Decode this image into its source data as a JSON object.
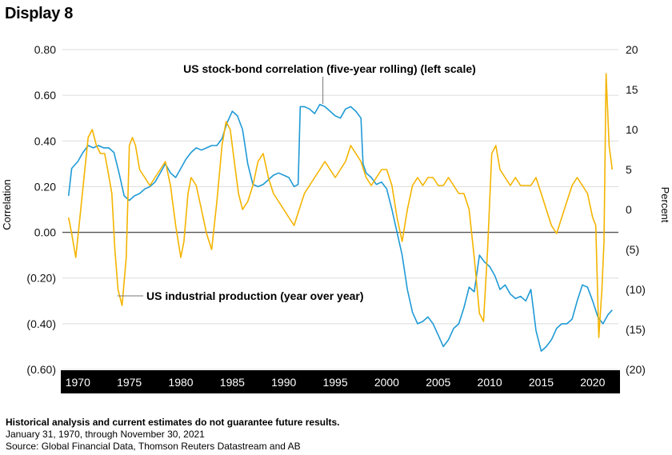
{
  "page": {
    "title": "Display 8",
    "notes": [
      "Historical analysis and current estimates do not guarantee future results.",
      "January 31, 1970, through November 30, 2021",
      "Source: Global Financial Data, Thomson Reuters Datastream and AB"
    ]
  },
  "chart_data": {
    "type": "line",
    "title": "",
    "xlabel": "",
    "ylabel_left": "Correlation",
    "ylabel_right": "Percent",
    "xlim": [
      1968.5,
      2022.5
    ],
    "ylim_left": [
      -0.6,
      0.8
    ],
    "ylim_right": [
      -20,
      20
    ],
    "x_ticks": [
      1970,
      1975,
      1980,
      1985,
      1990,
      1995,
      2000,
      2005,
      2010,
      2015,
      2020
    ],
    "x_tick_labels": [
      "1970",
      "1975",
      "1980",
      "1985",
      "1990",
      "1995",
      "2000",
      "2005",
      "2010",
      "2015",
      "2020"
    ],
    "y_left_ticks": [
      0.8,
      0.6,
      0.4,
      0.2,
      0.0,
      -0.2,
      -0.4,
      -0.6
    ],
    "y_left_tick_labels": [
      "0.80",
      "0.60",
      "0.40",
      "0.20",
      "0.00",
      "(0.20)",
      "(0.40)",
      "(0.60)"
    ],
    "y_right_ticks": [
      20,
      15,
      10,
      5,
      0,
      -5,
      -10,
      -15,
      -20
    ],
    "y_right_tick_labels": [
      "20",
      "15",
      "10",
      "5",
      "0",
      "(5)",
      "(10)",
      "(15)",
      "(20)"
    ],
    "grid": true,
    "zero_line": true,
    "series": [
      {
        "name": "US stock-bond correlation (five-year rolling) (left scale)",
        "axis": "left",
        "color": "#1f9ad6",
        "x": [
          1969.1,
          1969.4,
          1970.0,
          1970.5,
          1971.0,
          1971.5,
          1972.0,
          1972.5,
          1973.0,
          1973.5,
          1974.0,
          1974.5,
          1975.0,
          1975.5,
          1976.0,
          1976.5,
          1977.0,
          1977.5,
          1978.0,
          1978.5,
          1979.0,
          1979.5,
          1980.0,
          1980.5,
          1981.0,
          1981.5,
          1982.0,
          1982.5,
          1983.0,
          1983.5,
          1984.0,
          1984.5,
          1985.0,
          1985.5,
          1986.0,
          1986.5,
          1987.0,
          1987.5,
          1988.0,
          1988.5,
          1989.0,
          1989.5,
          1990.0,
          1990.5,
          1991.0,
          1991.4,
          1991.6,
          1992.0,
          1992.5,
          1993.0,
          1993.5,
          1994.0,
          1994.5,
          1995.0,
          1995.5,
          1996.0,
          1996.5,
          1997.0,
          1997.5,
          1997.7,
          1998.0,
          1998.5,
          1999.0,
          1999.5,
          2000.0,
          2000.5,
          2001.0,
          2001.5,
          2002.0,
          2002.5,
          2003.0,
          2003.5,
          2004.0,
          2004.5,
          2005.0,
          2005.5,
          2006.0,
          2006.5,
          2007.0,
          2007.5,
          2008.0,
          2008.5,
          2009.0,
          2009.5,
          2010.0,
          2010.5,
          2011.0,
          2011.5,
          2012.0,
          2012.5,
          2013.0,
          2013.5,
          2014.0,
          2014.5,
          2015.0,
          2015.5,
          2016.0,
          2016.5,
          2017.0,
          2017.5,
          2018.0,
          2018.5,
          2019.0,
          2019.5,
          2020.0,
          2020.5,
          2021.0,
          2021.5,
          2021.9
        ],
        "values": [
          0.16,
          0.28,
          0.31,
          0.35,
          0.38,
          0.37,
          0.38,
          0.37,
          0.37,
          0.35,
          0.26,
          0.16,
          0.14,
          0.16,
          0.17,
          0.19,
          0.2,
          0.22,
          0.26,
          0.3,
          0.26,
          0.24,
          0.28,
          0.32,
          0.35,
          0.37,
          0.36,
          0.37,
          0.38,
          0.38,
          0.41,
          0.48,
          0.53,
          0.51,
          0.45,
          0.3,
          0.21,
          0.2,
          0.21,
          0.23,
          0.25,
          0.26,
          0.25,
          0.24,
          0.2,
          0.21,
          0.55,
          0.55,
          0.54,
          0.52,
          0.56,
          0.55,
          0.53,
          0.51,
          0.5,
          0.54,
          0.55,
          0.53,
          0.5,
          0.3,
          0.26,
          0.24,
          0.21,
          0.22,
          0.19,
          0.1,
          0.0,
          -0.1,
          -0.25,
          -0.35,
          -0.4,
          -0.39,
          -0.37,
          -0.4,
          -0.45,
          -0.5,
          -0.47,
          -0.42,
          -0.4,
          -0.33,
          -0.24,
          -0.26,
          -0.1,
          -0.13,
          -0.15,
          -0.19,
          -0.25,
          -0.23,
          -0.27,
          -0.29,
          -0.28,
          -0.3,
          -0.25,
          -0.43,
          -0.52,
          -0.5,
          -0.47,
          -0.42,
          -0.4,
          -0.4,
          -0.38,
          -0.3,
          -0.23,
          -0.24,
          -0.3,
          -0.37,
          -0.4,
          -0.36,
          -0.34
        ]
      },
      {
        "name": "US industrial production (year over year)",
        "axis": "right",
        "color": "#f4b400",
        "x": [
          1969.1,
          1969.4,
          1969.8,
          1970.2,
          1970.6,
          1971.0,
          1971.4,
          1971.8,
          1972.2,
          1972.6,
          1972.9,
          1973.3,
          1973.6,
          1973.9,
          1974.3,
          1974.7,
          1975.0,
          1975.3,
          1975.6,
          1976.0,
          1976.5,
          1977.0,
          1977.5,
          1978.0,
          1978.5,
          1979.0,
          1979.5,
          1980.0,
          1980.3,
          1980.7,
          1981.0,
          1981.5,
          1982.0,
          1982.5,
          1983.0,
          1983.5,
          1984.0,
          1984.4,
          1984.8,
          1985.2,
          1985.6,
          1986.0,
          1986.5,
          1987.0,
          1987.5,
          1988.0,
          1988.5,
          1989.0,
          1989.5,
          1990.0,
          1990.5,
          1991.0,
          1991.5,
          1992.0,
          1992.5,
          1993.0,
          1993.5,
          1994.0,
          1994.5,
          1995.0,
          1995.5,
          1996.0,
          1996.5,
          1997.0,
          1997.5,
          1998.0,
          1998.5,
          1999.0,
          1999.5,
          2000.0,
          2000.5,
          2001.0,
          2001.5,
          2002.0,
          2002.5,
          2003.0,
          2003.5,
          2004.0,
          2004.5,
          2005.0,
          2005.5,
          2006.0,
          2006.5,
          2007.0,
          2007.5,
          2008.0,
          2008.5,
          2009.0,
          2009.4,
          2009.8,
          2010.2,
          2010.6,
          2011.0,
          2011.5,
          2012.0,
          2012.5,
          2013.0,
          2013.5,
          2014.0,
          2014.5,
          2015.0,
          2015.5,
          2016.0,
          2016.5,
          2017.0,
          2017.5,
          2018.0,
          2018.5,
          2019.0,
          2019.5,
          2020.0,
          2020.3,
          2020.6,
          2020.9,
          2021.1,
          2021.3,
          2021.6,
          2021.9
        ],
        "values": [
          -1,
          -3,
          -6,
          -1,
          4,
          9,
          10,
          8,
          7,
          7,
          5,
          2,
          -5,
          -10,
          -12,
          -6,
          8,
          9,
          8,
          5,
          4,
          3,
          4,
          5,
          6,
          3,
          -2,
          -6,
          -4,
          2,
          4,
          3,
          0,
          -3,
          -5,
          1,
          8,
          11,
          10,
          6,
          2,
          0,
          1,
          3,
          6,
          7,
          4,
          2,
          1,
          0,
          -1,
          -2,
          0,
          2,
          3,
          4,
          5,
          6,
          5,
          4,
          5,
          6,
          8,
          7,
          6,
          4,
          3,
          4,
          5,
          5,
          3,
          -1,
          -4,
          0,
          3,
          4,
          3,
          4,
          4,
          3,
          3,
          4,
          3,
          2,
          2,
          0,
          -6,
          -13,
          -14,
          -5,
          7,
          8,
          5,
          4,
          3,
          4,
          3,
          3,
          3,
          4,
          2,
          0,
          -2,
          -3,
          -1,
          1,
          3,
          4,
          3,
          2,
          -1,
          -2,
          -16,
          -10,
          -4,
          17,
          8,
          5
        ]
      }
    ],
    "annotations": [
      {
        "text": "US stock-bond correlation (five-year rolling) (left scale)",
        "points_to_x": 1993.8
      },
      {
        "text": "US industrial production (year over year)",
        "points_to_x": 1973.6
      }
    ]
  }
}
